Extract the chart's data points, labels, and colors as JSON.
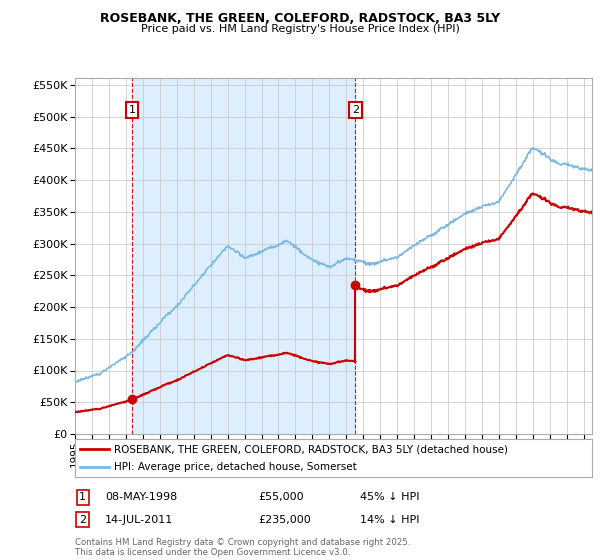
{
  "title": "ROSEBANK, THE GREEN, COLEFORD, RADSTOCK, BA3 5LY",
  "subtitle": "Price paid vs. HM Land Registry's House Price Index (HPI)",
  "ylim": [
    0,
    560000
  ],
  "yticks": [
    0,
    50000,
    100000,
    150000,
    200000,
    250000,
    300000,
    350000,
    400000,
    450000,
    500000,
    550000
  ],
  "xlim": [
    1995.0,
    2025.5
  ],
  "legend_line1": "ROSEBANK, THE GREEN, COLEFORD, RADSTOCK, BA3 5LY (detached house)",
  "legend_line2": "HPI: Average price, detached house, Somerset",
  "ann1_x": 1998.36,
  "ann1_y": 55000,
  "ann2_x": 2011.54,
  "ann2_y": 235000,
  "table_row1": [
    "1",
    "08-MAY-1998",
    "£55,000",
    "45% ↓ HPI"
  ],
  "table_row2": [
    "2",
    "14-JUL-2011",
    "£235,000",
    "14% ↓ HPI"
  ],
  "footer": "Contains HM Land Registry data © Crown copyright and database right 2025.\nThis data is licensed under the Open Government Licence v3.0.",
  "hpi_color": "#7bb8e0",
  "price_color": "#cc0000",
  "shade_color": "#ddeeff",
  "background_color": "#ffffff",
  "grid_color": "#cccccc"
}
